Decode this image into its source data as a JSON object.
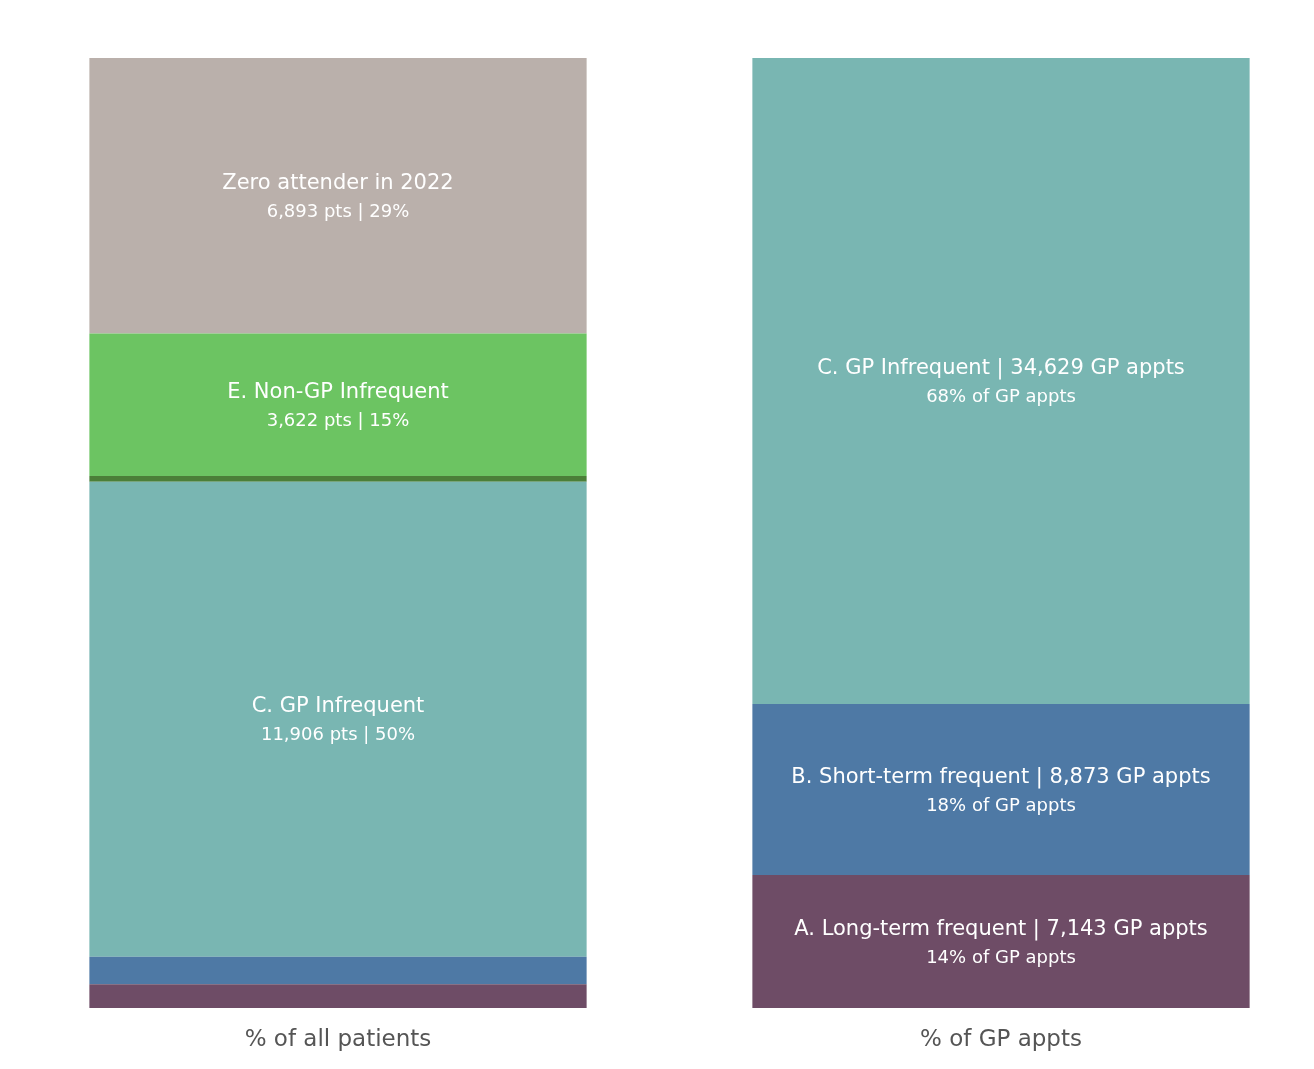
{
  "chart_data": {
    "type": "bar",
    "stacked": true,
    "tick_labels": "x",
    "categories": [
      "% of all patients",
      "% of GP appts"
    ],
    "series": [
      {
        "name": "A. Long-term frequent | 7,143 GP appts",
        "color": "#6e4c66",
        "values": [
          2.5,
          14
        ],
        "value_labels": [
          null,
          "14% of GP appts"
        ]
      },
      {
        "name": "B. Short-term frequent | 8,873 GP appts",
        "color": "#4e79a5",
        "values": [
          2.9,
          18
        ],
        "value_labels": [
          null,
          "18% of GP appts"
        ]
      },
      {
        "name": "C. GP Infrequent",
        "color": "#79b6b2",
        "values": [
          50,
          null
        ],
        "value_labels": [
          "11,906 pts | 50%",
          null
        ]
      },
      {
        "name": "C. GP Infrequent | 34,629 GP appts",
        "color": "#79b6b2",
        "values": [
          null,
          68
        ],
        "value_labels": [
          null,
          "68% of GP appts"
        ]
      },
      {
        "color": "#4b7f38",
        "values": [
          0.6,
          null
        ]
      },
      {
        "name": "E. Non-GP Infrequent",
        "color": "#6cc462",
        "values": [
          15,
          null
        ],
        "value_labels": [
          "3,622 pts | 15%",
          null
        ]
      },
      {
        "name": "Zero attender in 2022",
        "color": "#bab0ab",
        "values": [
          29,
          null
        ],
        "value_labels": [
          "6,893 pts | 29%",
          null
        ]
      }
    ]
  }
}
